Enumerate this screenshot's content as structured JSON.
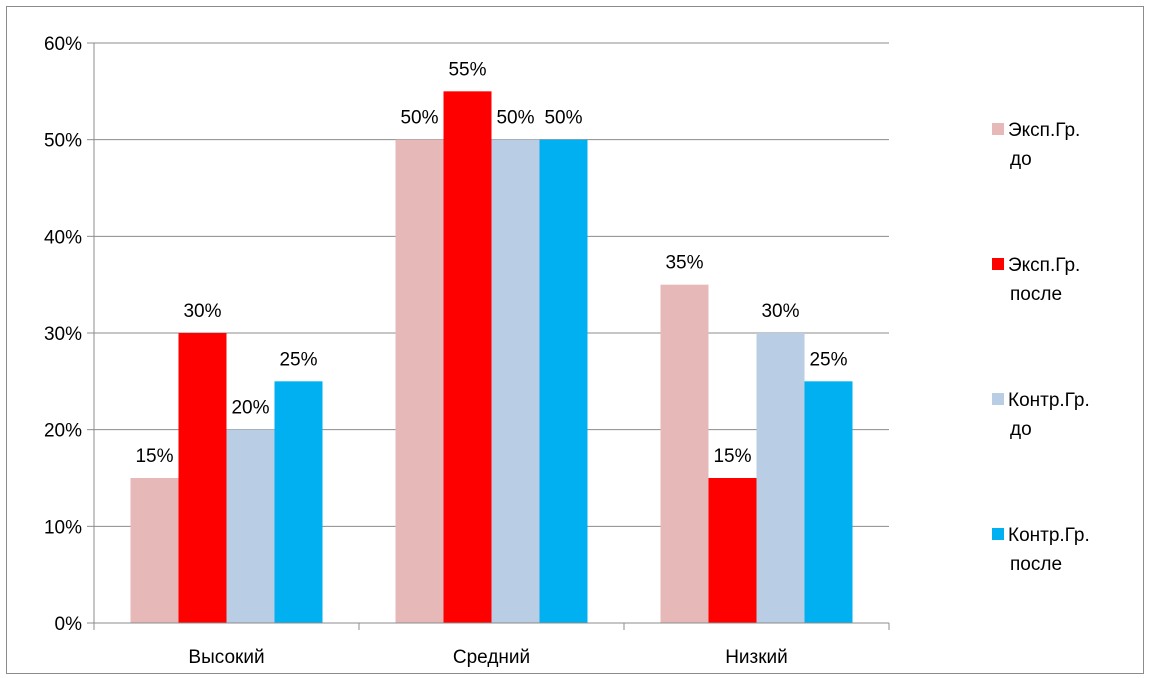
{
  "chart_data": {
    "type": "bar",
    "categories": [
      "Высокий",
      "Средний",
      "Низкий"
    ],
    "series": [
      {
        "name": "Эксп.Гр. до",
        "legend_lines": [
          "Эксп.Гр.",
          "до"
        ],
        "values": [
          15,
          50,
          35
        ],
        "labels": [
          "15%",
          "50%",
          "35%"
        ],
        "color": "#e6b9b8"
      },
      {
        "name": "Эксп.Гр. после",
        "legend_lines": [
          "Эксп.Гр.",
          "после"
        ],
        "values": [
          30,
          55,
          15
        ],
        "labels": [
          "30%",
          "55%",
          "15%"
        ],
        "color": "#ff0000"
      },
      {
        "name": "Контр.Гр. до",
        "legend_lines": [
          "Контр.Гр.",
          "до"
        ],
        "values": [
          20,
          50,
          30
        ],
        "labels": [
          "20%",
          "50%",
          "30%"
        ],
        "color": "#b9cde5"
      },
      {
        "name": "Контр.Гр. после",
        "legend_lines": [
          "Контр.Гр.",
          "после"
        ],
        "values": [
          25,
          50,
          25
        ],
        "labels": [
          "25%",
          "50%",
          "25%"
        ],
        "color": "#00b0f0"
      }
    ],
    "y_ticks": [
      0,
      10,
      20,
      30,
      40,
      50,
      60
    ],
    "y_tick_labels": [
      "0%",
      "10%",
      "20%",
      "30%",
      "40%",
      "50%",
      "60%"
    ],
    "ylim": [
      0,
      60
    ],
    "grid": true,
    "legend_position": "right"
  }
}
